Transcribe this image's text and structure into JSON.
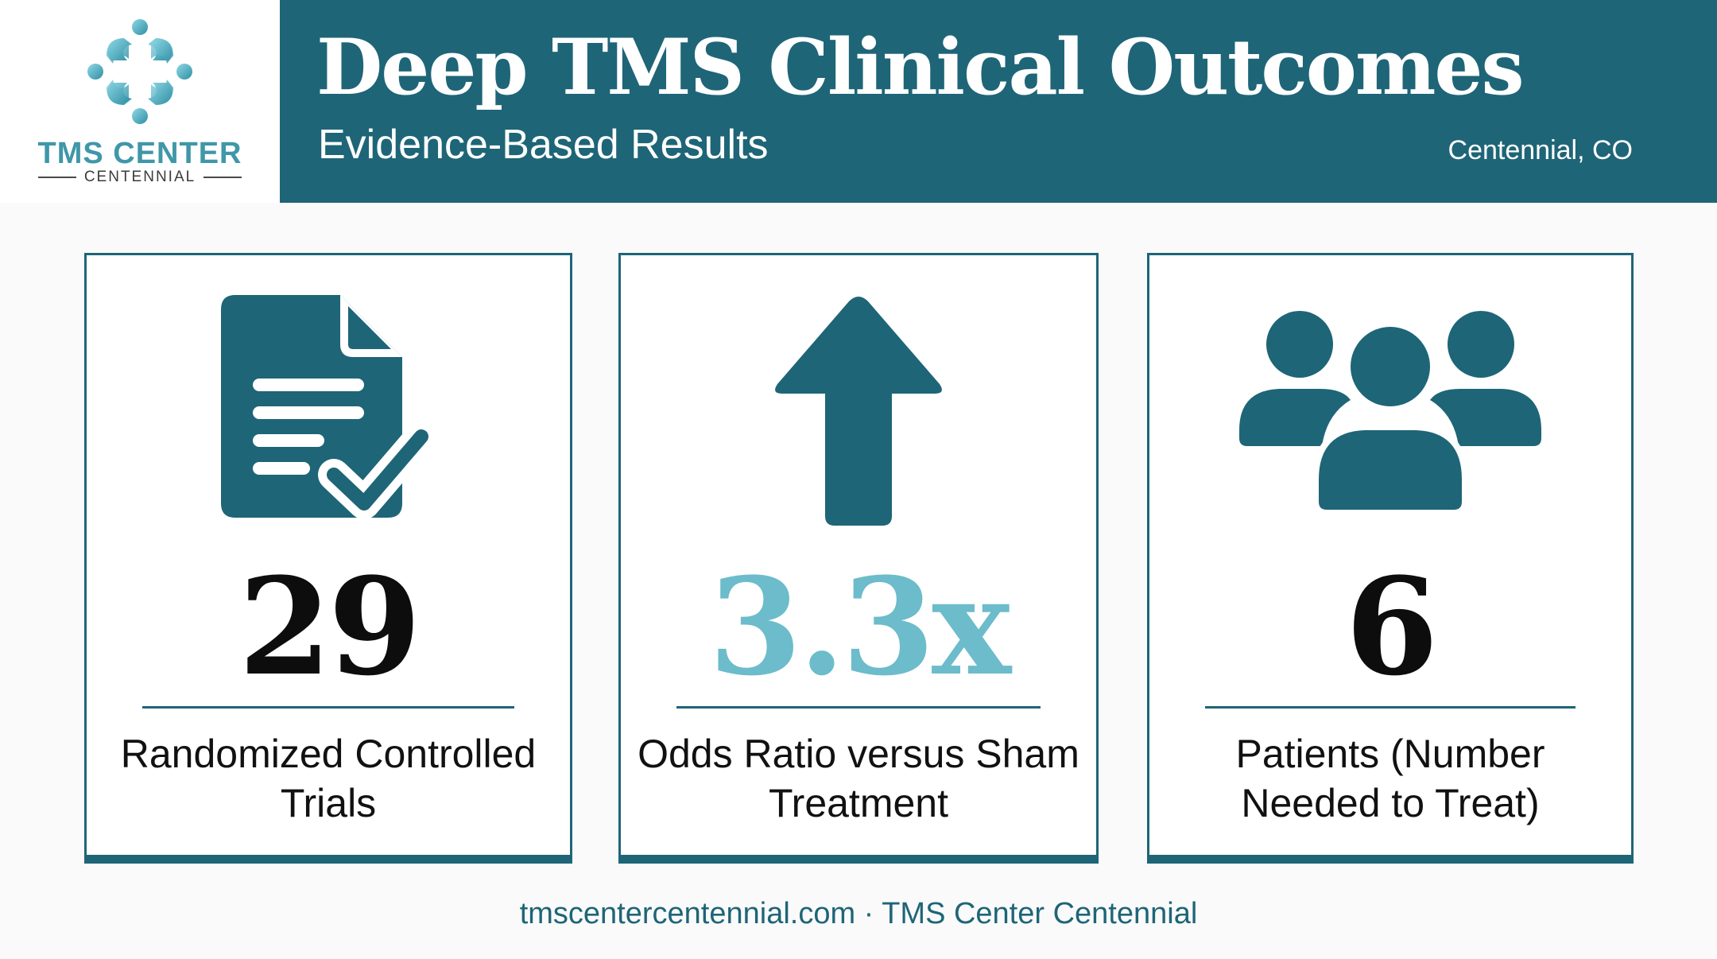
{
  "logo": {
    "name": "TMS CENTER",
    "sub": "CENTENNIAL"
  },
  "header": {
    "title": "Deep TMS Clinical Outcomes",
    "subtitle": "Evidence-Based Results",
    "location": "Centennial, CO"
  },
  "stats": [
    {
      "icon": "document-check-icon",
      "value": "29",
      "label": "Randomized Controlled Trials"
    },
    {
      "icon": "arrow-up-icon",
      "value": "3.3x",
      "label": "Odds Ratio versus Sham Treatment"
    },
    {
      "icon": "people-group-icon",
      "value": "6",
      "label": "Patients (Number Needed to Treat)"
    }
  ],
  "footer": {
    "text": "tmscentercentennial.com · TMS Center Centennial"
  },
  "colors": {
    "primary_teal": "#1e6577",
    "light_teal": "#6cbccb",
    "logo_teal": "#3f97a8",
    "background": "#fafafa"
  }
}
